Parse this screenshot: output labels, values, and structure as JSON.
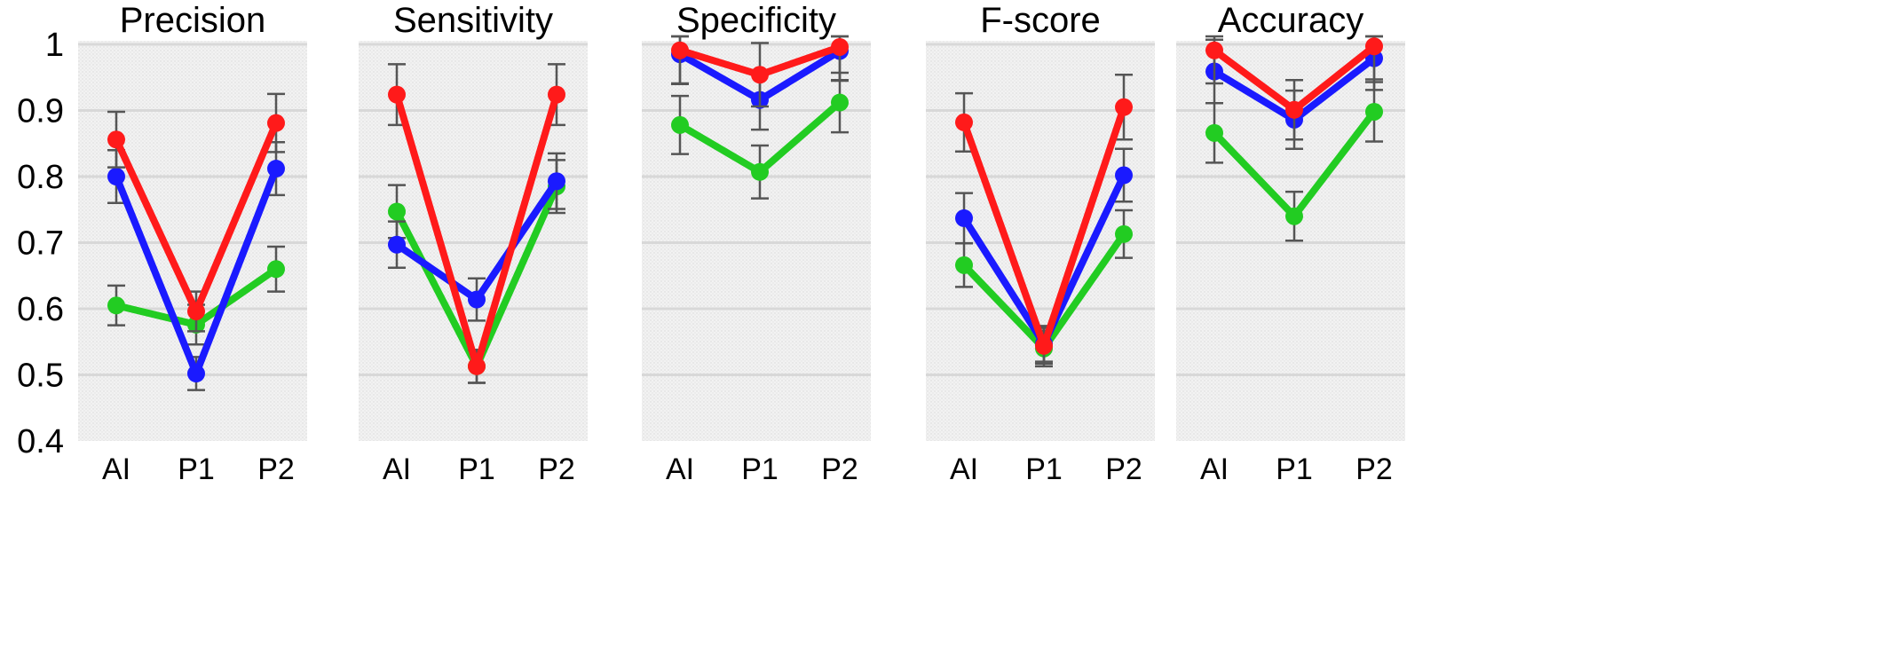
{
  "chart_data": {
    "type": "line",
    "y_ticks": [
      "0.4",
      "0.5",
      "0.6",
      "0.7",
      "0.8",
      "0.9",
      "1"
    ],
    "ylim": [
      0.4,
      1.0
    ],
    "grid": true,
    "colors": {
      "red": "#ff1a1a",
      "blue": "#1a1aff",
      "green": "#22cc22",
      "errorbar": "#555555",
      "plot_bg": "#eeeeee",
      "grid": "#d8d8d8"
    },
    "panels": [
      {
        "title": "Precision",
        "categories": [
          "AI",
          "P1",
          "P2"
        ],
        "series": [
          {
            "color": "green",
            "values": [
              0.605,
              0.576,
              0.66
            ],
            "errors": [
              0.03,
              0.03,
              0.034
            ]
          },
          {
            "color": "blue",
            "values": [
              0.8,
              0.502,
              0.812
            ],
            "errors": [
              0.04,
              0.025,
              0.04
            ]
          },
          {
            "color": "red",
            "values": [
              0.856,
              0.596,
              0.881
            ],
            "errors": [
              0.042,
              0.03,
              0.044
            ]
          }
        ]
      },
      {
        "title": "Sensitivity",
        "categories": [
          "AI",
          "P1",
          "P2"
        ],
        "series": [
          {
            "color": "green",
            "values": [
              0.747,
              0.513,
              0.785
            ],
            "errors": [
              0.04,
              0.025,
              0.04
            ]
          },
          {
            "color": "blue",
            "values": [
              0.697,
              0.614,
              0.793
            ],
            "errors": [
              0.035,
              0.032,
              0.042
            ]
          },
          {
            "color": "red",
            "values": [
              0.924,
              0.513,
              0.924
            ],
            "errors": [
              0.046,
              0.025,
              0.046
            ]
          }
        ]
      },
      {
        "title": "Specificity",
        "categories": [
          "AI",
          "P1",
          "P2"
        ],
        "series": [
          {
            "color": "green",
            "values": [
              0.878,
              0.807,
              0.912
            ],
            "errors": [
              0.044,
              0.04,
              0.045
            ]
          },
          {
            "color": "blue",
            "values": [
              0.985,
              0.916,
              0.99
            ],
            "errors": [
              0.045,
              0.045,
              0.045
            ]
          },
          {
            "color": "red",
            "values": [
              0.991,
              0.954,
              0.996
            ],
            "errors": [
              0.05,
              0.048,
              0.05
            ]
          }
        ]
      },
      {
        "title": "F-score",
        "categories": [
          "AI",
          "P1",
          "P2"
        ],
        "series": [
          {
            "color": "green",
            "values": [
              0.666,
              0.54,
              0.713
            ],
            "errors": [
              0.033,
              0.027,
              0.036
            ]
          },
          {
            "color": "blue",
            "values": [
              0.737,
              0.547,
              0.802
            ],
            "errors": [
              0.038,
              0.027,
              0.04
            ]
          },
          {
            "color": "red",
            "values": [
              0.882,
              0.544,
              0.905
            ],
            "errors": [
              0.044,
              0.027,
              0.049
            ]
          }
        ]
      },
      {
        "title": "Accuracy",
        "categories": [
          "AI",
          "P1",
          "P2"
        ],
        "series": [
          {
            "color": "green",
            "values": [
              0.866,
              0.74,
              0.898
            ],
            "errors": [
              0.045,
              0.037,
              0.045
            ]
          },
          {
            "color": "blue",
            "values": [
              0.959,
              0.886,
              0.979
            ],
            "errors": [
              0.048,
              0.044,
              0.048
            ]
          },
          {
            "color": "red",
            "values": [
              0.991,
              0.901,
              0.997
            ],
            "errors": [
              0.05,
              0.045,
              0.05
            ]
          }
        ]
      }
    ]
  }
}
